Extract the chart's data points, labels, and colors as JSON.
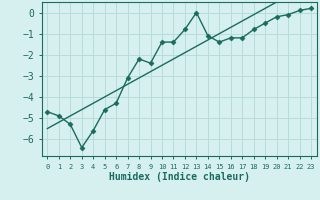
{
  "xlabel": "Humidex (Indice chaleur)",
  "background_color": "#d6f0ef",
  "grid_color": "#b8ddd9",
  "line_color": "#1a6b5e",
  "x_data": [
    0,
    1,
    2,
    3,
    4,
    5,
    6,
    7,
    8,
    9,
    10,
    11,
    12,
    13,
    14,
    15,
    16,
    17,
    18,
    19,
    20,
    21,
    22,
    23
  ],
  "y_zigzag": [
    -4.7,
    -4.9,
    -5.3,
    -6.4,
    -5.6,
    -4.6,
    -4.3,
    -3.1,
    -2.2,
    -2.4,
    -1.4,
    -1.4,
    -0.8,
    0.0,
    -1.1,
    -1.4,
    -1.2,
    -1.2,
    -0.8,
    -0.5,
    -0.2,
    -0.1,
    0.1,
    0.2
  ],
  "y_linear": [
    -5.5,
    -5.2,
    -4.9,
    -4.6,
    -4.3,
    -4.0,
    -3.7,
    -3.4,
    -3.1,
    -2.8,
    -2.5,
    -2.2,
    -1.9,
    -1.6,
    -1.3,
    -1.0,
    -0.7,
    -0.4,
    -0.1,
    0.2,
    0.5,
    0.8,
    1.1,
    1.4
  ],
  "xlim": [
    -0.5,
    23.5
  ],
  "ylim": [
    -6.8,
    0.5
  ],
  "yticks": [
    0,
    -1,
    -2,
    -3,
    -4,
    -5,
    -6
  ],
  "xtick_labels": [
    "0",
    "1",
    "2",
    "3",
    "4",
    "5",
    "6",
    "7",
    "8",
    "9",
    "10",
    "11",
    "12",
    "13",
    "14",
    "15",
    "16",
    "17",
    "18",
    "19",
    "20",
    "21",
    "22",
    "23"
  ],
  "marker_style": "D",
  "marker_size": 2.5,
  "line_width": 1.0,
  "tick_fontsize": 7,
  "xlabel_fontsize": 7
}
